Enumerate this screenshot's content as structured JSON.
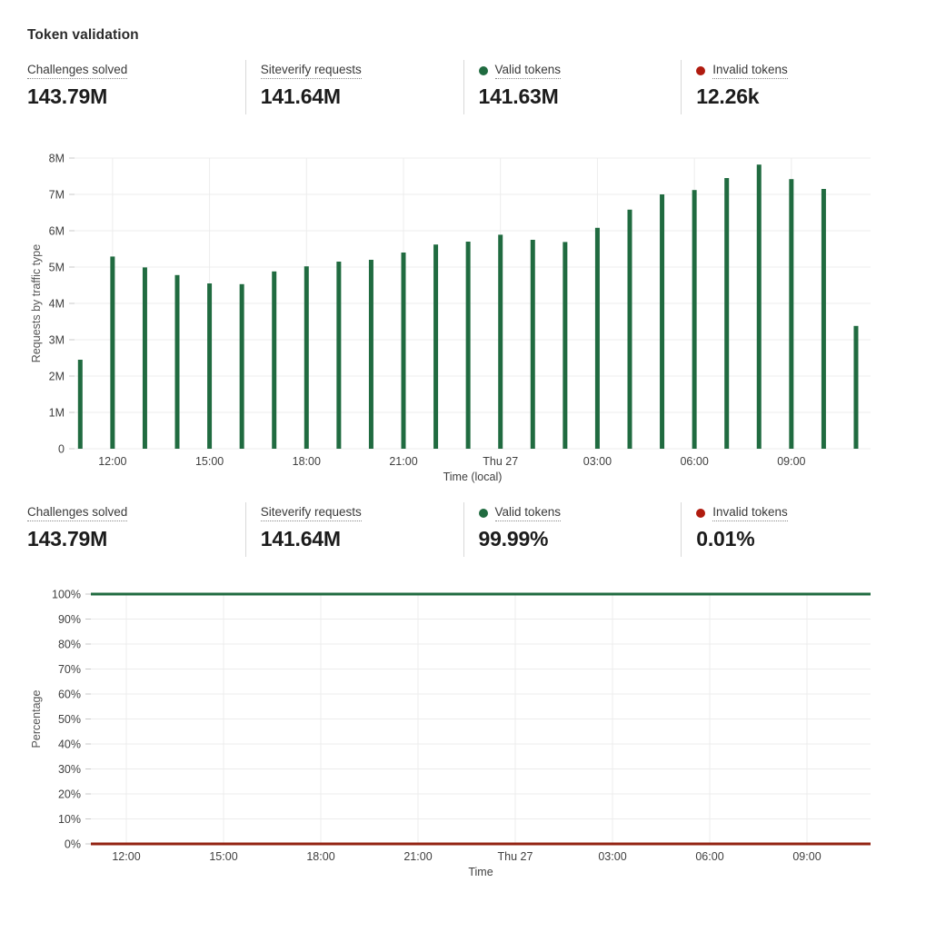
{
  "page": {
    "title": "Token validation"
  },
  "colors": {
    "valid_green": "#206b40",
    "invalid_red_dot": "#b01b0f",
    "invalid_red_line": "#932312",
    "grid": "#ececec",
    "tick": "#c9c9c9",
    "axis_text": "#3f3f3f",
    "axis_title": "#555555",
    "divider": "#d9d9d9"
  },
  "stats_top": [
    {
      "label": "Challenges solved",
      "value": "143.79M",
      "dot": null
    },
    {
      "label": "Siteverify requests",
      "value": "141.64M",
      "dot": null
    },
    {
      "label": "Valid tokens",
      "value": "141.63M",
      "dot": "green"
    },
    {
      "label": "Invalid tokens",
      "value": "12.26k",
      "dot": "red"
    }
  ],
  "stats_bottom": [
    {
      "label": "Challenges solved",
      "value": "143.79M",
      "dot": null
    },
    {
      "label": "Siteverify requests",
      "value": "141.64M",
      "dot": null
    },
    {
      "label": "Valid tokens",
      "value": "99.99%",
      "dot": "green"
    },
    {
      "label": "Invalid tokens",
      "value": "0.01%",
      "dot": "red"
    }
  ],
  "chart_data": [
    {
      "type": "bar",
      "title": "",
      "ylabel": "Requests by traffic type",
      "xlabel": "Time (local)",
      "ylim": [
        0,
        8000000
      ],
      "grid": true,
      "legend_position": "none",
      "ytick_labels": [
        "0",
        "1M",
        "2M",
        "3M",
        "4M",
        "5M",
        "6M",
        "7M",
        "8M"
      ],
      "categories": [
        "11:00",
        "12:00",
        "13:00",
        "14:00",
        "15:00",
        "16:00",
        "17:00",
        "18:00",
        "19:00",
        "20:00",
        "21:00",
        "22:00",
        "23:00",
        "Thu 27",
        "01:00",
        "02:00",
        "03:00",
        "04:00",
        "05:00",
        "06:00",
        "07:00",
        "08:00",
        "09:00",
        "10:00",
        "11:00"
      ],
      "values": [
        2450000,
        5290000,
        4990000,
        4780000,
        4550000,
        4530000,
        4880000,
        5020000,
        5150000,
        5200000,
        5400000,
        5620000,
        5700000,
        5890000,
        5750000,
        5690000,
        6080000,
        6580000,
        7000000,
        7120000,
        7450000,
        7820000,
        7420000,
        7150000,
        3380000
      ],
      "xtick_indices": [
        1,
        4,
        7,
        10,
        13,
        16,
        19,
        22
      ],
      "xtick_labels": [
        "12:00",
        "15:00",
        "18:00",
        "21:00",
        "Thu 27",
        "03:00",
        "06:00",
        "09:00"
      ],
      "bar_color": "#206b40"
    },
    {
      "type": "line",
      "title": "",
      "ylabel": "Percentage",
      "xlabel": "Time",
      "ylim": [
        0,
        100
      ],
      "grid": true,
      "legend_position": "none",
      "ytick_labels": [
        "0%",
        "10%",
        "20%",
        "30%",
        "40%",
        "50%",
        "60%",
        "70%",
        "80%",
        "90%",
        "100%"
      ],
      "xtick_labels": [
        "12:00",
        "15:00",
        "18:00",
        "21:00",
        "Thu 27",
        "03:00",
        "06:00",
        "09:00"
      ],
      "series": [
        {
          "name": "Valid tokens",
          "color": "#206b40",
          "constant_value": 100
        },
        {
          "name": "Invalid tokens",
          "color": "#932312",
          "constant_value": 0
        }
      ]
    }
  ]
}
